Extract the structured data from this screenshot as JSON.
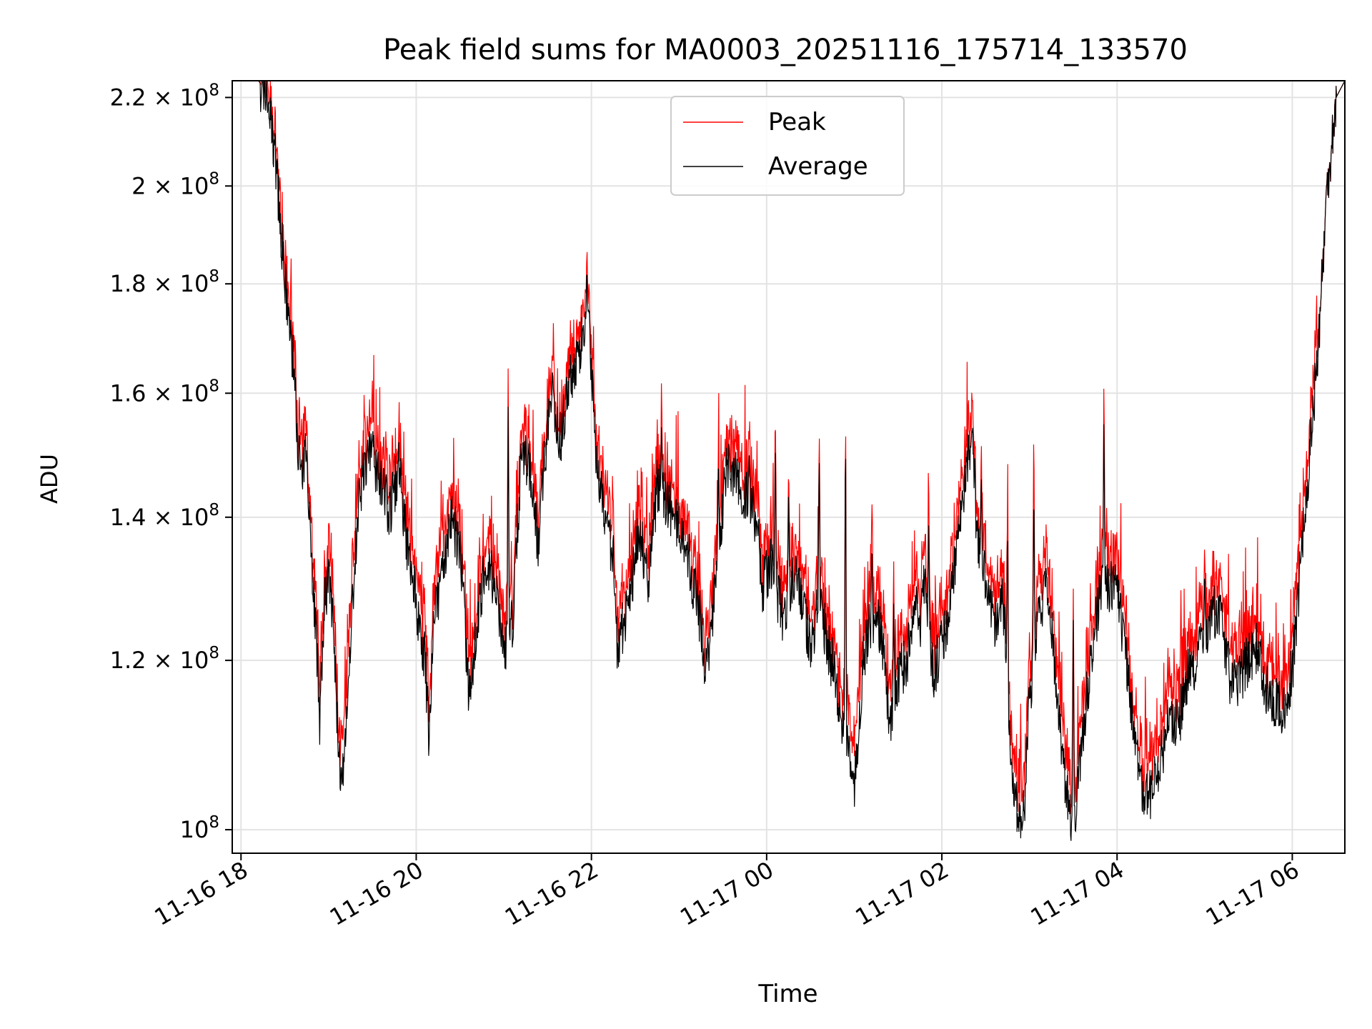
{
  "chart_data": {
    "type": "line",
    "title": "Peak field sums for MA0003_20251116_175714_133570",
    "xlabel": "Time",
    "ylabel": "ADU",
    "yscale": "log",
    "ylim": [
      97500000,
      224000000
    ],
    "xlim_hours": [
      17.9,
      30.6
    ],
    "grid": true,
    "legend_position": "top-center",
    "x_ticks": [
      {
        "hour": 18,
        "label": "11-16 18"
      },
      {
        "hour": 20,
        "label": "11-16 20"
      },
      {
        "hour": 22,
        "label": "11-16 22"
      },
      {
        "hour": 24,
        "label": "11-17 00"
      },
      {
        "hour": 26,
        "label": "11-17 02"
      },
      {
        "hour": 28,
        "label": "11-17 04"
      },
      {
        "hour": 30,
        "label": "11-17 06"
      }
    ],
    "y_ticks": [
      {
        "value": 100000000,
        "base": "10",
        "exp": "8"
      },
      {
        "value": 120000000,
        "base": "1.2 × 10",
        "exp": "8"
      },
      {
        "value": 140000000,
        "base": "1.4 × 10",
        "exp": "8"
      },
      {
        "value": 160000000,
        "base": "1.6 × 10",
        "exp": "8"
      },
      {
        "value": 180000000,
        "base": "1.8 × 10",
        "exp": "8"
      },
      {
        "value": 200000000,
        "base": "2 × 10",
        "exp": "8"
      },
      {
        "value": 220000000,
        "base": "2.2 × 10",
        "exp": "8"
      }
    ],
    "series": [
      {
        "name": "Peak",
        "color": "#ff0000",
        "noise_up": 4500000
      },
      {
        "name": "Average",
        "color": "#000000",
        "noise_up": 0
      }
    ],
    "average_envelope": [
      [
        17.95,
        224000000
      ],
      [
        18.2,
        224000000
      ],
      [
        18.3,
        221000000
      ],
      [
        18.4,
        205000000
      ],
      [
        18.5,
        180000000
      ],
      [
        18.6,
        165000000
      ],
      [
        18.65,
        152000000
      ],
      [
        18.7,
        145000000
      ],
      [
        18.75,
        152000000
      ],
      [
        18.8,
        135000000
      ],
      [
        18.85,
        125000000
      ],
      [
        18.9,
        112000000
      ],
      [
        18.95,
        128000000
      ],
      [
        19.0,
        131000000
      ],
      [
        19.05,
        125000000
      ],
      [
        19.1,
        112000000
      ],
      [
        19.15,
        104000000
      ],
      [
        19.2,
        110000000
      ],
      [
        19.3,
        135000000
      ],
      [
        19.4,
        148000000
      ],
      [
        19.5,
        150000000
      ],
      [
        19.6,
        145000000
      ],
      [
        19.7,
        141000000
      ],
      [
        19.8,
        148000000
      ],
      [
        19.9,
        135000000
      ],
      [
        20.0,
        128000000
      ],
      [
        20.1,
        120000000
      ],
      [
        20.15,
        110000000
      ],
      [
        20.2,
        125000000
      ],
      [
        20.3,
        132000000
      ],
      [
        20.4,
        140000000
      ],
      [
        20.5,
        135000000
      ],
      [
        20.55,
        126000000
      ],
      [
        20.6,
        115000000
      ],
      [
        20.7,
        125000000
      ],
      [
        20.8,
        134000000
      ],
      [
        20.9,
        130000000
      ],
      [
        21.0,
        121000000
      ],
      [
        21.1,
        125000000
      ],
      [
        21.2,
        150000000
      ],
      [
        21.3,
        148000000
      ],
      [
        21.35,
        140000000
      ],
      [
        21.4,
        136000000
      ],
      [
        21.45,
        148000000
      ],
      [
        21.55,
        160000000
      ],
      [
        21.65,
        152000000
      ],
      [
        21.75,
        163000000
      ],
      [
        21.85,
        165000000
      ],
      [
        21.9,
        170000000
      ],
      [
        21.95,
        178000000
      ],
      [
        22.05,
        150000000
      ],
      [
        22.15,
        140000000
      ],
      [
        22.25,
        134000000
      ],
      [
        22.3,
        120000000
      ],
      [
        22.35,
        124000000
      ],
      [
        22.45,
        130000000
      ],
      [
        22.55,
        138000000
      ],
      [
        22.65,
        130000000
      ],
      [
        22.75,
        145000000
      ],
      [
        22.85,
        143000000
      ],
      [
        22.95,
        140000000
      ],
      [
        23.05,
        137000000
      ],
      [
        23.1,
        135000000
      ],
      [
        23.15,
        131000000
      ],
      [
        23.25,
        125000000
      ],
      [
        23.3,
        118000000
      ],
      [
        23.4,
        128000000
      ],
      [
        23.5,
        142000000
      ],
      [
        23.55,
        148000000
      ],
      [
        23.6,
        148000000
      ],
      [
        23.7,
        145000000
      ],
      [
        23.8,
        143000000
      ],
      [
        23.9,
        138000000
      ],
      [
        23.95,
        130000000
      ],
      [
        24.05,
        133000000
      ],
      [
        24.1,
        130000000
      ],
      [
        24.2,
        125000000
      ],
      [
        24.3,
        132000000
      ],
      [
        24.4,
        128000000
      ],
      [
        24.5,
        122000000
      ],
      [
        24.6,
        128000000
      ],
      [
        24.7,
        122000000
      ],
      [
        24.8,
        117000000
      ],
      [
        24.9,
        110000000
      ],
      [
        25.0,
        104000000
      ],
      [
        25.1,
        120000000
      ],
      [
        25.2,
        126000000
      ],
      [
        25.3,
        124000000
      ],
      [
        25.35,
        120000000
      ],
      [
        25.4,
        112000000
      ],
      [
        25.5,
        118000000
      ],
      [
        25.6,
        120000000
      ],
      [
        25.7,
        128000000
      ],
      [
        25.75,
        124000000
      ],
      [
        25.8,
        130000000
      ],
      [
        25.85,
        125000000
      ],
      [
        25.9,
        118000000
      ],
      [
        26.0,
        122000000
      ],
      [
        26.05,
        124000000
      ],
      [
        26.1,
        128000000
      ],
      [
        26.2,
        140000000
      ],
      [
        26.3,
        150000000
      ],
      [
        26.35,
        152000000
      ],
      [
        26.4,
        138000000
      ],
      [
        26.5,
        130000000
      ],
      [
        26.6,
        125000000
      ],
      [
        26.7,
        128000000
      ],
      [
        26.75,
        118000000
      ],
      [
        26.8,
        105000000
      ],
      [
        26.9,
        100000000
      ],
      [
        26.95,
        104000000
      ],
      [
        27.0,
        115000000
      ],
      [
        27.1,
        125000000
      ],
      [
        27.2,
        130000000
      ],
      [
        27.3,
        118000000
      ],
      [
        27.4,
        105000000
      ],
      [
        27.5,
        100000000
      ],
      [
        27.6,
        110000000
      ],
      [
        27.7,
        120000000
      ],
      [
        27.8,
        129000000
      ],
      [
        27.9,
        130000000
      ],
      [
        28.0,
        129000000
      ],
      [
        28.1,
        121000000
      ],
      [
        28.2,
        110000000
      ],
      [
        28.3,
        103000000
      ],
      [
        28.4,
        104000000
      ],
      [
        28.5,
        108000000
      ],
      [
        28.6,
        113000000
      ],
      [
        28.7,
        112000000
      ],
      [
        28.8,
        118000000
      ],
      [
        28.9,
        120000000
      ],
      [
        29.0,
        123000000
      ],
      [
        29.1,
        127000000
      ],
      [
        29.2,
        125000000
      ],
      [
        29.3,
        117000000
      ],
      [
        29.4,
        118000000
      ],
      [
        29.5,
        120000000
      ],
      [
        29.6,
        122000000
      ],
      [
        29.7,
        116000000
      ],
      [
        29.8,
        115000000
      ],
      [
        29.9,
        113000000
      ],
      [
        30.0,
        119000000
      ],
      [
        30.05,
        125000000
      ],
      [
        30.1,
        135000000
      ],
      [
        30.2,
        150000000
      ],
      [
        30.3,
        170000000
      ],
      [
        30.4,
        200000000
      ],
      [
        30.5,
        220000000
      ],
      [
        30.6,
        224000000
      ]
    ],
    "average_spikes": [
      [
        19.35,
        147000000
      ],
      [
        21.05,
        160000000
      ],
      [
        22.2,
        140000000
      ],
      [
        22.8,
        155000000
      ],
      [
        23.45,
        151000000
      ],
      [
        23.8,
        150000000
      ],
      [
        24.1,
        152000000
      ],
      [
        24.25,
        145000000
      ],
      [
        24.6,
        152000000
      ],
      [
        24.9,
        158000000
      ],
      [
        25.2,
        137000000
      ],
      [
        25.45,
        128000000
      ],
      [
        25.85,
        140000000
      ],
      [
        26.45,
        148000000
      ],
      [
        26.75,
        141000000
      ],
      [
        27.05,
        147000000
      ],
      [
        27.5,
        127000000
      ],
      [
        27.85,
        158000000
      ],
      [
        29.0,
        133000000
      ]
    ]
  },
  "legend": {
    "peak_label": "Peak",
    "average_label": "Average"
  }
}
